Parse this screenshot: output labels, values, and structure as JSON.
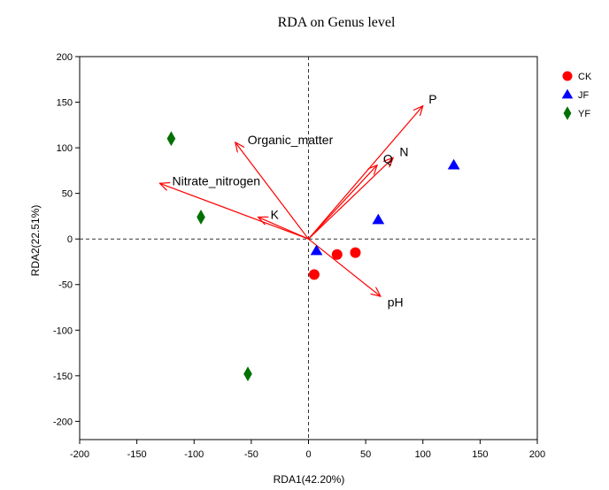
{
  "chart_data": {
    "type": "scatter",
    "title": "RDA on Genus level",
    "xlabel": "RDA1(42.20%)",
    "ylabel": "RDA2(22.51%)",
    "xlim": [
      -200,
      200
    ],
    "ylim": [
      -220,
      200
    ],
    "xticks": [
      -200,
      -150,
      -100,
      -50,
      0,
      50,
      100,
      150,
      200
    ],
    "yticks": [
      -200,
      -150,
      -100,
      -50,
      0,
      50,
      100,
      150,
      200
    ],
    "zero_lines": true,
    "grid": false,
    "legend_position": "top-right",
    "series": [
      {
        "name": "CK",
        "marker": "circle",
        "color": "#ff0000",
        "points": [
          [
            5,
            -39
          ],
          [
            25,
            -17
          ],
          [
            41,
            -15
          ]
        ]
      },
      {
        "name": "JF",
        "marker": "triangle",
        "color": "#0000ff",
        "points": [
          [
            7,
            -13
          ],
          [
            61,
            21
          ],
          [
            127,
            81
          ]
        ]
      },
      {
        "name": "YF",
        "marker": "diamond",
        "color": "#007000",
        "points": [
          [
            -120,
            110
          ],
          [
            -94,
            24
          ],
          [
            -53,
            -148
          ]
        ]
      }
    ],
    "arrows": [
      {
        "label": "P",
        "x": 100,
        "y": 146
      },
      {
        "label": "Organic_matter",
        "x": -64,
        "y": 106
      },
      {
        "label": "N",
        "x": 74,
        "y": 89
      },
      {
        "label": "Q",
        "x": 60,
        "y": 81
      },
      {
        "label": "Nitrate_nitrogen",
        "x": -130,
        "y": 61
      },
      {
        "label": "K",
        "x": -44,
        "y": 24
      },
      {
        "label": "pH",
        "x": 63,
        "y": -63
      }
    ],
    "arrow_color": "#ff0000"
  }
}
